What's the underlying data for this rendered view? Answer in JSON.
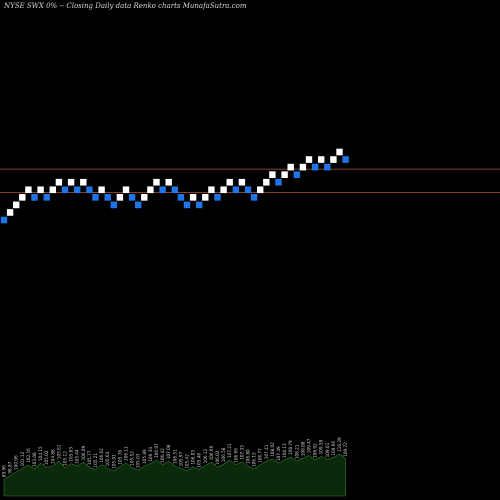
{
  "header": {
    "title": "NYSE SWX  0% --  Closing Daily data  Renko  charts MunafaSutra.com"
  },
  "colors": {
    "background": "#000000",
    "up_brick": "#ffffff",
    "down_brick": "#1f74e6",
    "reference_line": "#b5533b",
    "volume_fill": "#0b2a0b",
    "volume_stroke": "#2f7a2f"
  },
  "chart_data": {
    "type": "renko",
    "reference_lines": [
      110.2,
      106.8
    ],
    "bricks": [
      {
        "dir": "down",
        "price": 102.6
      },
      {
        "dir": "up",
        "price": 103.7
      },
      {
        "dir": "up",
        "price": 104.8
      },
      {
        "dir": "up",
        "price": 105.9
      },
      {
        "dir": "up",
        "price": 107.0
      },
      {
        "dir": "down",
        "price": 105.9
      },
      {
        "dir": "up",
        "price": 107.0
      },
      {
        "dir": "down",
        "price": 105.9
      },
      {
        "dir": "up",
        "price": 107.0
      },
      {
        "dir": "up",
        "price": 108.1
      },
      {
        "dir": "down",
        "price": 107.0
      },
      {
        "dir": "up",
        "price": 108.1
      },
      {
        "dir": "down",
        "price": 107.0
      },
      {
        "dir": "up",
        "price": 108.1
      },
      {
        "dir": "down",
        "price": 107.0
      },
      {
        "dir": "down",
        "price": 105.9
      },
      {
        "dir": "up",
        "price": 107.0
      },
      {
        "dir": "down",
        "price": 105.9
      },
      {
        "dir": "down",
        "price": 104.8
      },
      {
        "dir": "up",
        "price": 105.9
      },
      {
        "dir": "up",
        "price": 107.0
      },
      {
        "dir": "down",
        "price": 105.9
      },
      {
        "dir": "down",
        "price": 104.8
      },
      {
        "dir": "up",
        "price": 105.9
      },
      {
        "dir": "up",
        "price": 107.0
      },
      {
        "dir": "up",
        "price": 108.1
      },
      {
        "dir": "down",
        "price": 107.0
      },
      {
        "dir": "up",
        "price": 108.1
      },
      {
        "dir": "down",
        "price": 107.0
      },
      {
        "dir": "down",
        "price": 105.9
      },
      {
        "dir": "down",
        "price": 104.8
      },
      {
        "dir": "up",
        "price": 105.9
      },
      {
        "dir": "down",
        "price": 104.8
      },
      {
        "dir": "up",
        "price": 105.9
      },
      {
        "dir": "up",
        "price": 107.0
      },
      {
        "dir": "down",
        "price": 105.9
      },
      {
        "dir": "up",
        "price": 107.0
      },
      {
        "dir": "up",
        "price": 108.1
      },
      {
        "dir": "down",
        "price": 107.0
      },
      {
        "dir": "up",
        "price": 108.1
      },
      {
        "dir": "down",
        "price": 107.0
      },
      {
        "dir": "down",
        "price": 105.9
      },
      {
        "dir": "up",
        "price": 107.0
      },
      {
        "dir": "up",
        "price": 108.1
      },
      {
        "dir": "up",
        "price": 109.2
      },
      {
        "dir": "down",
        "price": 108.1
      },
      {
        "dir": "up",
        "price": 109.2
      },
      {
        "dir": "up",
        "price": 110.3
      },
      {
        "dir": "down",
        "price": 109.2
      },
      {
        "dir": "up",
        "price": 110.3
      },
      {
        "dir": "up",
        "price": 111.4
      },
      {
        "dir": "down",
        "price": 110.3
      },
      {
        "dir": "up",
        "price": 111.4
      },
      {
        "dir": "down",
        "price": 110.3
      },
      {
        "dir": "up",
        "price": 111.4
      },
      {
        "dir": "up",
        "price": 112.5
      },
      {
        "dir": "down",
        "price": 111.4
      }
    ],
    "volume": [
      28,
      34,
      40,
      46,
      52,
      45,
      55,
      48,
      50,
      58,
      47,
      54,
      50,
      56,
      48,
      44,
      52,
      46,
      42,
      49,
      55,
      47,
      43,
      50,
      54,
      60,
      52,
      58,
      50,
      46,
      42,
      49,
      44,
      51,
      56,
      48,
      53,
      60,
      52,
      57,
      50,
      45,
      52,
      58,
      62,
      55,
      60,
      65,
      58,
      63,
      68,
      60,
      66,
      61,
      64,
      70,
      62
    ],
    "x_labels": [
      "89.96",
      "98.87",
      "100.96",
      "101.12",
      "102.16",
      "103.08",
      "104.15",
      "105.02",
      "104.88",
      "105.61",
      "105.12",
      "105.93",
      "105.44",
      "106.09",
      "105.77",
      "105.21",
      "106.02",
      "105.64",
      "105.01",
      "105.78",
      "106.11",
      "105.52",
      "105.03",
      "105.89",
      "106.34",
      "106.97",
      "106.42",
      "107.08",
      "106.51",
      "105.97",
      "105.42",
      "106.03",
      "105.48",
      "106.12",
      "106.66",
      "106.02",
      "106.58",
      "107.21",
      "106.69",
      "107.33",
      "106.80",
      "106.15",
      "106.77",
      "107.41",
      "108.02",
      "107.49",
      "108.13",
      "108.79",
      "108.21",
      "108.88",
      "109.47",
      "108.92",
      "109.58",
      "109.01",
      "109.66",
      "110.29",
      "109.72"
    ]
  }
}
